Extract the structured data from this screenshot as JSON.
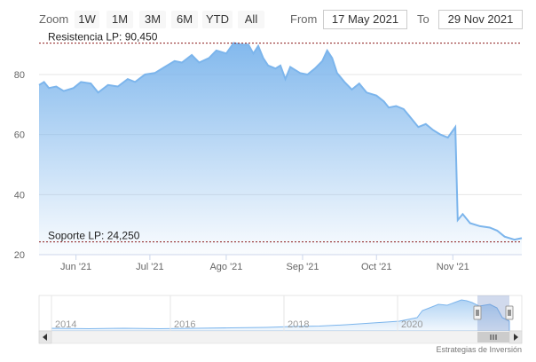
{
  "toolbar": {
    "zoom_label": "Zoom",
    "buttons": [
      "1W",
      "1M",
      "3M",
      "6M",
      "YTD",
      "All"
    ],
    "from_label": "From",
    "from_value": "17 May 2021",
    "to_label": "To",
    "to_value": "29 Nov 2021"
  },
  "credit": "Estrategias de Inversión",
  "colors": {
    "series": "#7cb5ec",
    "level_line": "#8b1a1a",
    "navigator_mask": "#6685c2",
    "grid": "#e6e6e6"
  },
  "chart_data": {
    "type": "area",
    "title": "",
    "xlabel": "",
    "ylabel": "",
    "ylim": [
      20,
      93
    ],
    "yticks": [
      20,
      40,
      60,
      80
    ],
    "x_range": [
      "2021-05-17",
      "2021-11-29"
    ],
    "xticks": [
      {
        "date": "2021-06-01",
        "label": "Jun '21"
      },
      {
        "date": "2021-07-01",
        "label": "Jul '21"
      },
      {
        "date": "2021-08-01",
        "label": "Ago '21"
      },
      {
        "date": "2021-09-01",
        "label": "Sep '21"
      },
      {
        "date": "2021-10-01",
        "label": "Oct '21"
      },
      {
        "date": "2021-11-01",
        "label": "Nov '21"
      }
    ],
    "grid": true,
    "series": [
      {
        "points": [
          [
            "2021-05-17",
            76.5
          ],
          [
            "2021-05-19",
            77.5
          ],
          [
            "2021-05-21",
            75.5
          ],
          [
            "2021-05-24",
            76.0
          ],
          [
            "2021-05-27",
            74.5
          ],
          [
            "2021-05-31",
            75.5
          ],
          [
            "2021-06-03",
            77.5
          ],
          [
            "2021-06-07",
            77.0
          ],
          [
            "2021-06-10",
            74.0
          ],
          [
            "2021-06-14",
            76.5
          ],
          [
            "2021-06-18",
            76.0
          ],
          [
            "2021-06-22",
            78.5
          ],
          [
            "2021-06-25",
            77.5
          ],
          [
            "2021-06-29",
            80.0
          ],
          [
            "2021-07-03",
            80.5
          ],
          [
            "2021-07-07",
            82.5
          ],
          [
            "2021-07-11",
            84.5
          ],
          [
            "2021-07-14",
            84.0
          ],
          [
            "2021-07-18",
            86.5
          ],
          [
            "2021-07-21",
            84.0
          ],
          [
            "2021-07-25",
            85.5
          ],
          [
            "2021-07-28",
            88.0
          ],
          [
            "2021-08-01",
            87.0
          ],
          [
            "2021-08-04",
            90.5
          ],
          [
            "2021-08-07",
            90.0
          ],
          [
            "2021-08-10",
            90.0
          ],
          [
            "2021-08-12",
            87.0
          ],
          [
            "2021-08-14",
            89.5
          ],
          [
            "2021-08-16",
            85.5
          ],
          [
            "2021-08-18",
            83.0
          ],
          [
            "2021-08-21",
            82.0
          ],
          [
            "2021-08-23",
            83.0
          ],
          [
            "2021-08-25",
            78.5
          ],
          [
            "2021-08-27",
            82.5
          ],
          [
            "2021-08-31",
            80.5
          ],
          [
            "2021-09-03",
            80.0
          ],
          [
            "2021-09-06",
            82.0
          ],
          [
            "2021-09-09",
            84.5
          ],
          [
            "2021-09-11",
            88.0
          ],
          [
            "2021-09-13",
            85.5
          ],
          [
            "2021-09-15",
            80.5
          ],
          [
            "2021-09-18",
            77.5
          ],
          [
            "2021-09-21",
            75.0
          ],
          [
            "2021-09-24",
            77.0
          ],
          [
            "2021-09-27",
            74.0
          ],
          [
            "2021-10-01",
            73.0
          ],
          [
            "2021-10-04",
            71.0
          ],
          [
            "2021-10-06",
            69.0
          ],
          [
            "2021-10-09",
            69.5
          ],
          [
            "2021-10-12",
            68.5
          ],
          [
            "2021-10-15",
            65.5
          ],
          [
            "2021-10-18",
            62.5
          ],
          [
            "2021-10-21",
            63.5
          ],
          [
            "2021-10-24",
            61.5
          ],
          [
            "2021-10-27",
            60.0
          ],
          [
            "2021-10-30",
            59.0
          ],
          [
            "2021-11-02",
            62.5
          ],
          [
            "2021-11-03",
            31.5
          ],
          [
            "2021-11-05",
            33.5
          ],
          [
            "2021-11-08",
            30.5
          ],
          [
            "2021-11-12",
            29.5
          ],
          [
            "2021-11-16",
            29.0
          ],
          [
            "2021-11-19",
            28.0
          ],
          [
            "2021-11-22",
            26.0
          ],
          [
            "2021-11-26",
            25.0
          ],
          [
            "2021-11-29",
            25.5
          ]
        ]
      }
    ],
    "plot_lines": [
      {
        "value": 90.45,
        "label": "Resistencia LP: 90,450"
      },
      {
        "value": 24.25,
        "label": "Soporte LP: 24,250"
      }
    ],
    "navigator": {
      "labels": [
        "2014",
        "2016",
        "2018",
        "2020"
      ],
      "selected_range": [
        "2021-05-17",
        "2021-11-29"
      ]
    }
  }
}
